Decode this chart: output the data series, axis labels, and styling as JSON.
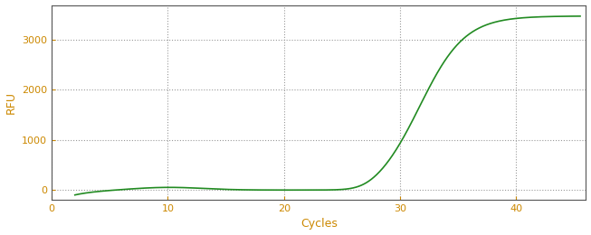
{
  "xlabel": "Cycles",
  "ylabel": "RFU",
  "line_color": "#228B22",
  "line_width": 1.2,
  "plot_bg_color": "#ffffff",
  "fig_bg_color": "#ffffff",
  "xlim": [
    0,
    46
  ],
  "ylim": [
    -200,
    3700
  ],
  "xticks": [
    0,
    10,
    20,
    30,
    40
  ],
  "yticks": [
    0,
    1000,
    2000,
    3000
  ],
  "grid_color": "#999999",
  "tick_color": "#cc8800",
  "label_color": "#cc8800",
  "spine_color": "#555555",
  "sigmoid_L": 3480,
  "sigmoid_k": 0.52,
  "sigmoid_x0": 31.8,
  "x_start": 2,
  "x_end": 45.5
}
